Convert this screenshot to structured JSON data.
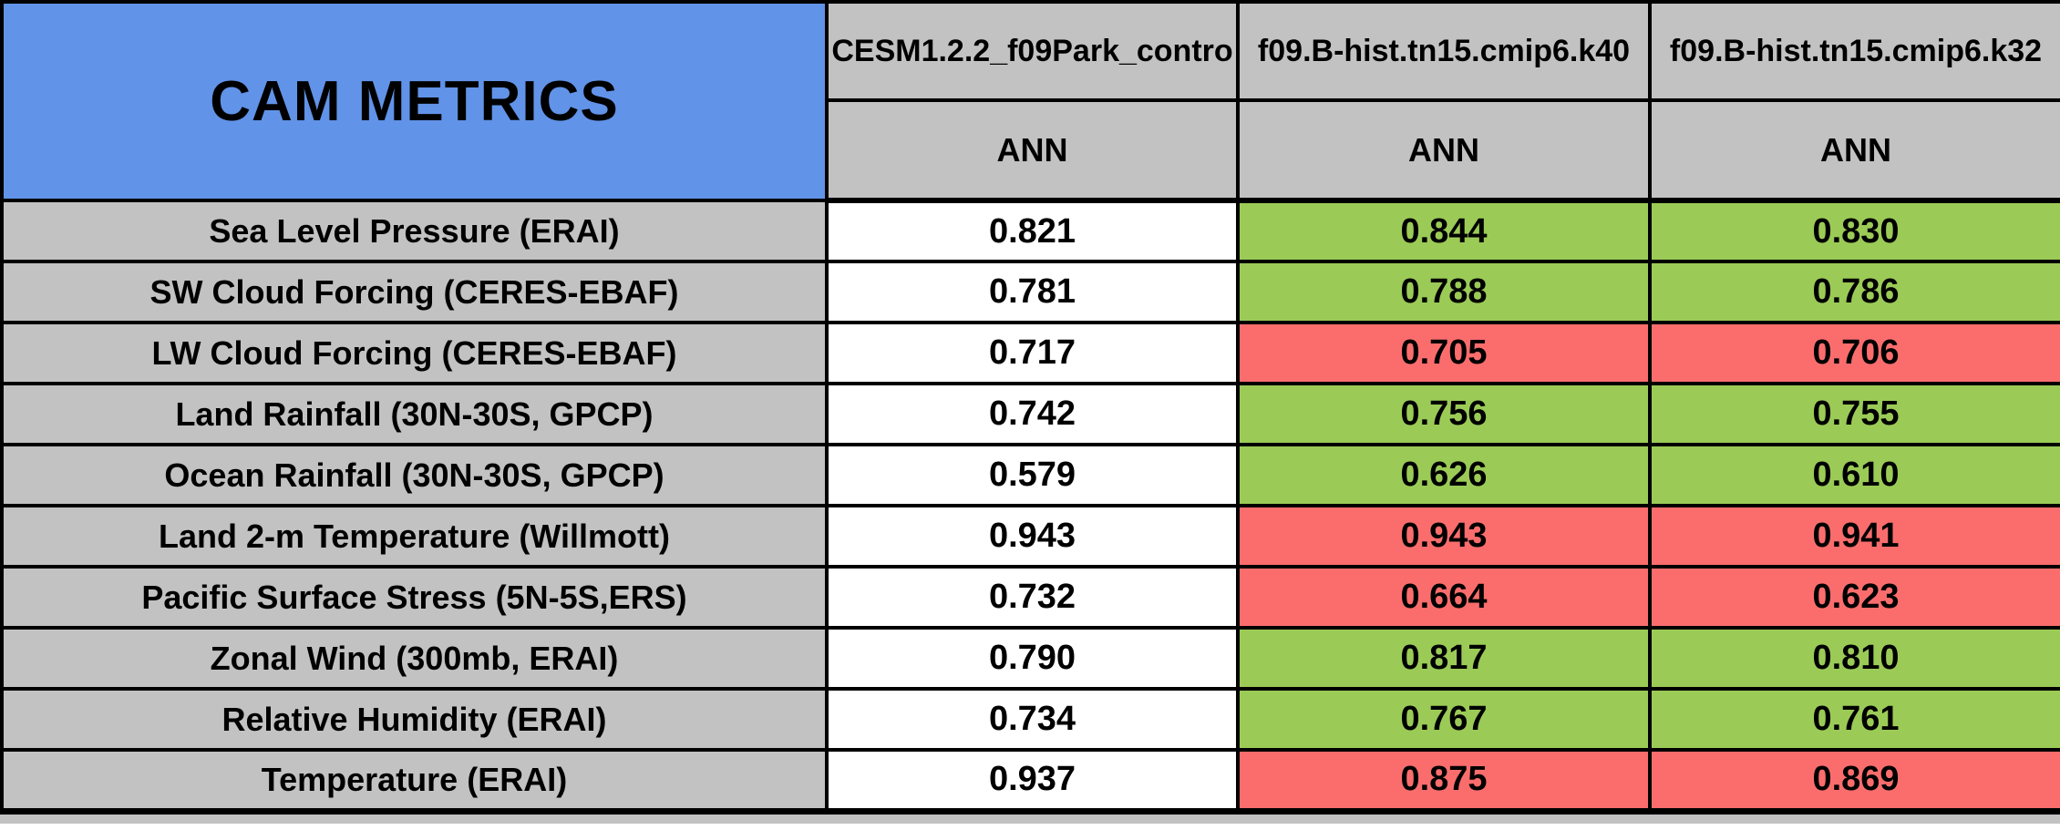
{
  "colors": {
    "header_blue": "#6193E8",
    "header_gray": "#C2C2C2",
    "good_green": "#9BCB56",
    "bad_red": "#FB6D6D",
    "control_white": "#FFFFFF",
    "border_black": "#000000"
  },
  "chart_data": {
    "type": "table",
    "title": "CAM METRICS",
    "column_headers": [
      "CESM1.2.2_f09Park_contro",
      "f09.B-hist.tn15.cmip6.k40",
      "f09.B-hist.tn15.cmip6.k32"
    ],
    "subheaders": [
      "ANN",
      "ANN",
      "ANN"
    ],
    "rows": [
      {
        "metric": "Sea Level Pressure (ERAI)",
        "values": [
          "0.821",
          "0.844",
          "0.830"
        ],
        "cell_colors": [
          "white",
          "green",
          "green"
        ]
      },
      {
        "metric": "SW Cloud Forcing (CERES-EBAF)",
        "values": [
          "0.781",
          "0.788",
          "0.786"
        ],
        "cell_colors": [
          "white",
          "green",
          "green"
        ]
      },
      {
        "metric": "LW Cloud Forcing (CERES-EBAF)",
        "values": [
          "0.717",
          "0.705",
          "0.706"
        ],
        "cell_colors": [
          "white",
          "red",
          "red"
        ]
      },
      {
        "metric": "Land Rainfall (30N-30S, GPCP)",
        "values": [
          "0.742",
          "0.756",
          "0.755"
        ],
        "cell_colors": [
          "white",
          "green",
          "green"
        ]
      },
      {
        "metric": "Ocean Rainfall (30N-30S, GPCP)",
        "values": [
          "0.579",
          "0.626",
          "0.610"
        ],
        "cell_colors": [
          "white",
          "green",
          "green"
        ]
      },
      {
        "metric": "Land 2-m Temperature (Willmott)",
        "values": [
          "0.943",
          "0.943",
          "0.941"
        ],
        "cell_colors": [
          "white",
          "red",
          "red"
        ]
      },
      {
        "metric": "Pacific Surface Stress (5N-5S,ERS)",
        "values": [
          "0.732",
          "0.664",
          "0.623"
        ],
        "cell_colors": [
          "white",
          "red",
          "red"
        ]
      },
      {
        "metric": "Zonal Wind (300mb, ERAI)",
        "values": [
          "0.790",
          "0.817",
          "0.810"
        ],
        "cell_colors": [
          "white",
          "green",
          "green"
        ]
      },
      {
        "metric": "Relative Humidity (ERAI)",
        "values": [
          "0.734",
          "0.767",
          "0.761"
        ],
        "cell_colors": [
          "white",
          "green",
          "green"
        ]
      },
      {
        "metric": "Temperature (ERAI)",
        "values": [
          "0.937",
          "0.875",
          "0.869"
        ],
        "cell_colors": [
          "white",
          "red",
          "red"
        ]
      }
    ]
  }
}
